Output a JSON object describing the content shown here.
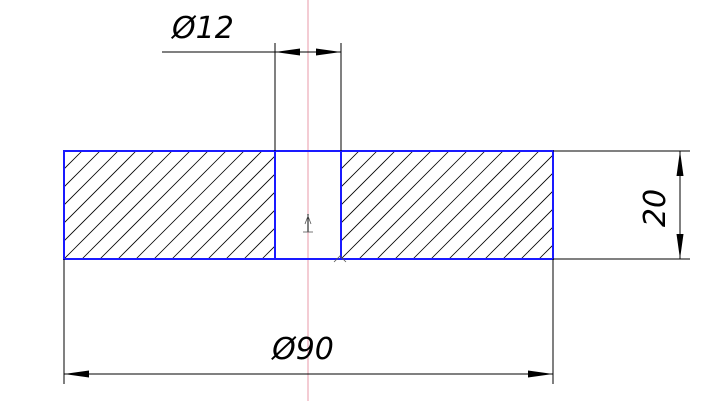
{
  "drawing": {
    "dimensions": {
      "hole_diameter": "Ø12",
      "thickness": "20",
      "outer_diameter": "Ø90"
    },
    "colors": {
      "outline": "#1a1aff",
      "dimension": "#000000",
      "centerline": "#e89aa8"
    }
  }
}
